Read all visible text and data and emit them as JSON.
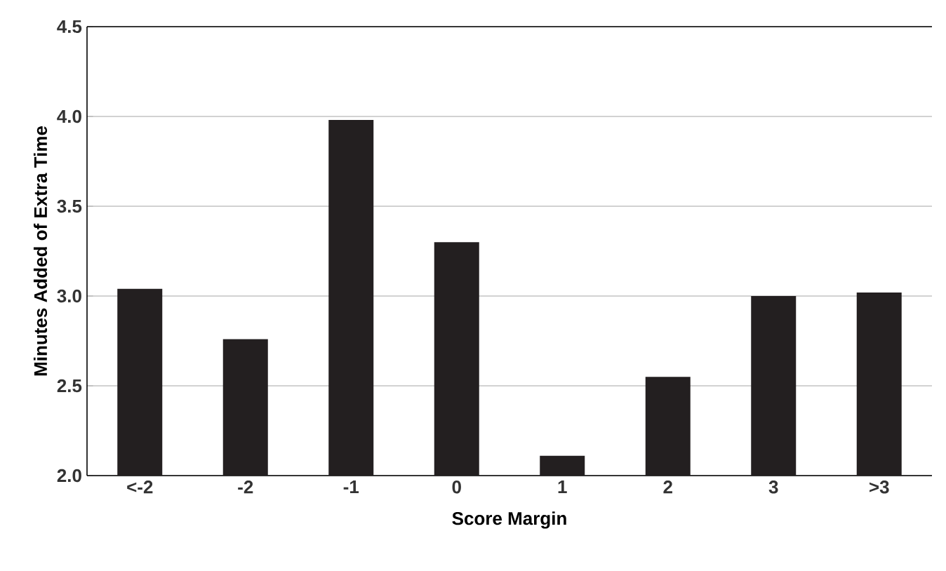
{
  "chart_data": {
    "type": "bar",
    "xlabel": "Score Margin",
    "ylabel": "Minutes Added of Extra Time",
    "categories": [
      "<-2",
      "-2",
      "-1",
      "0",
      "1",
      "2",
      "3",
      ">3"
    ],
    "values": [
      3.04,
      2.76,
      3.98,
      3.3,
      2.11,
      2.55,
      3.0,
      3.02
    ],
    "color": "#231f20",
    "ylim": [
      2.0,
      4.5
    ],
    "yticks": [
      {
        "value": 2.0,
        "label": "2.0"
      },
      {
        "value": 2.5,
        "label": "2.5"
      },
      {
        "value": 3.0,
        "label": "3.0"
      },
      {
        "value": 3.5,
        "label": "3.5"
      },
      {
        "value": 4.0,
        "label": "4.0"
      },
      {
        "value": 4.5,
        "label": "4.5"
      }
    ],
    "grid": "y"
  }
}
